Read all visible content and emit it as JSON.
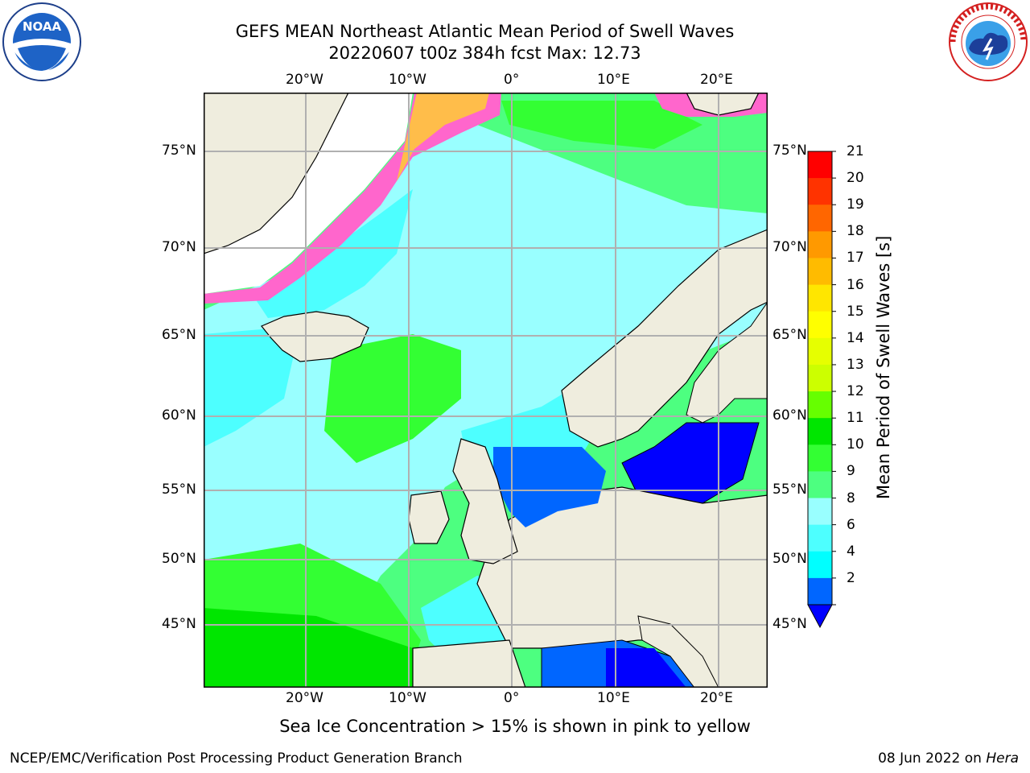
{
  "header": {
    "title_line1": "GEFS MEAN Northeast Atlantic Mean Period of Swell Waves",
    "title_line2": "20220607 t00z 384h fcst   Max: 12.73"
  },
  "logos": {
    "left": {
      "text": "NOAA",
      "ring_text": "NATIONAL OCEANIC AND ATMOSPHERIC ADMINISTRATION · U.S. DEPARTMENT OF COMMERCE"
    },
    "right": {
      "ring_text": "NATIONAL WEATHER SERVICE"
    }
  },
  "map": {
    "lon_labels": [
      "20°W",
      "10°W",
      "0°",
      "10°E",
      "20°E"
    ],
    "lat_labels": [
      "75°N",
      "70°N",
      "65°N",
      "60°N",
      "55°N",
      "50°N",
      "45°N"
    ],
    "colors": {
      "land": "#efedde",
      "ice_free": "#ffffff",
      "ocean_cyan": "#4dffff",
      "ocean_light": "#99ffff",
      "ocean_green": "#4dff80",
      "ocean_green2": "#33ff33",
      "ocean_dark_green": "#00e600",
      "ocean_blue": "#0066ff",
      "ocean_dark_blue": "#0000ff",
      "ice_pink": "#ff66cc",
      "ice_yellow": "#ffcc33",
      "grid": "#b0b0b0"
    }
  },
  "colorbar": {
    "label": "Mean Period of Swell Waves [s]",
    "ticks": [
      "21",
      "20",
      "19",
      "18",
      "17",
      "16",
      "15",
      "14",
      "13",
      "12",
      "11",
      "10",
      "9",
      "8",
      "6",
      "4",
      "2"
    ],
    "colors": [
      "#ff0000",
      "#ff3300",
      "#ff6600",
      "#ff9900",
      "#ffbb00",
      "#ffe600",
      "#ffff00",
      "#e6ff00",
      "#ccff00",
      "#66ff00",
      "#00e600",
      "#33ff33",
      "#4dff80",
      "#99ffff",
      "#4dffff",
      "#00ffff",
      "#0066ff"
    ],
    "extend_color": "#0000ff"
  },
  "caption": "Sea Ice Concentration > 15% is shown in pink to yellow",
  "footer": {
    "left": "NCEP/EMC/Verification Post Processing Product Generation Branch",
    "right_prefix": "08 Jun 2022 on ",
    "right_host": "Hera"
  }
}
